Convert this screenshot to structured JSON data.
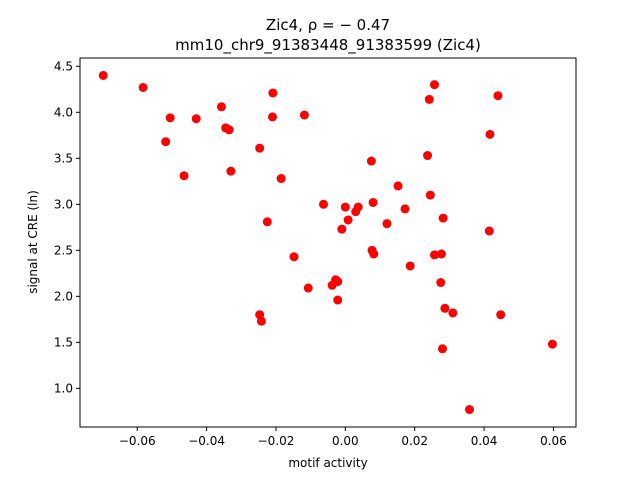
{
  "chart_data": {
    "type": "scatter",
    "title_line1": "Zic4, ρ = − 0.47",
    "title_line2": "mm10_chr9_91383448_91383599 (Zic4)",
    "xlabel": "motif activity",
    "ylabel": "signal at CRE (ln)",
    "xlim": [
      -0.0765,
      0.0665
    ],
    "ylim": [
      0.58,
      4.59
    ],
    "xticks": [
      -0.06,
      -0.04,
      -0.02,
      0.0,
      0.02,
      0.04,
      0.06
    ],
    "xtick_labels": [
      "−0.06",
      "−0.04",
      "−0.02",
      "0.00",
      "0.02",
      "0.04",
      "0.06"
    ],
    "yticks": [
      1.0,
      1.5,
      2.0,
      2.5,
      3.0,
      3.5,
      4.0,
      4.5
    ],
    "ytick_labels": [
      "1.0",
      "1.5",
      "2.0",
      "2.5",
      "3.0",
      "3.5",
      "4.0",
      "4.5"
    ],
    "grid": false,
    "marker_color": "#ff0000",
    "points": [
      {
        "x": -0.0698,
        "y": 4.4
      },
      {
        "x": -0.0583,
        "y": 4.27
      },
      {
        "x": -0.0505,
        "y": 3.94
      },
      {
        "x": -0.0518,
        "y": 3.68
      },
      {
        "x": -0.0465,
        "y": 3.31
      },
      {
        "x": -0.043,
        "y": 3.93
      },
      {
        "x": -0.0357,
        "y": 4.06
      },
      {
        "x": -0.0345,
        "y": 3.83
      },
      {
        "x": -0.0335,
        "y": 3.81
      },
      {
        "x": -0.033,
        "y": 3.36
      },
      {
        "x": -0.0247,
        "y": 3.61
      },
      {
        "x": -0.0209,
        "y": 4.21
      },
      {
        "x": -0.021,
        "y": 3.95
      },
      {
        "x": -0.0118,
        "y": 3.97
      },
      {
        "x": -0.0185,
        "y": 3.28
      },
      {
        "x": -0.0225,
        "y": 2.81
      },
      {
        "x": -0.0148,
        "y": 2.43
      },
      {
        "x": -0.0107,
        "y": 2.09
      },
      {
        "x": -0.0247,
        "y": 1.8
      },
      {
        "x": -0.0242,
        "y": 1.73
      },
      {
        "x": -0.0063,
        "y": 3.0
      },
      {
        "x": -0.0038,
        "y": 2.12
      },
      {
        "x": -0.0028,
        "y": 2.18
      },
      {
        "x": -0.0022,
        "y": 2.16
      },
      {
        "x": -0.0022,
        "y": 1.96
      },
      {
        "x": -0.001,
        "y": 2.73
      },
      {
        "x": 0.0,
        "y": 2.97
      },
      {
        "x": 0.0008,
        "y": 2.83
      },
      {
        "x": 0.003,
        "y": 2.92
      },
      {
        "x": 0.0037,
        "y": 2.97
      },
      {
        "x": 0.0075,
        "y": 3.47
      },
      {
        "x": 0.008,
        "y": 3.02
      },
      {
        "x": 0.0077,
        "y": 2.5
      },
      {
        "x": 0.0082,
        "y": 2.46
      },
      {
        "x": 0.012,
        "y": 2.79
      },
      {
        "x": 0.0152,
        "y": 3.2
      },
      {
        "x": 0.0172,
        "y": 2.95
      },
      {
        "x": 0.0187,
        "y": 2.33
      },
      {
        "x": 0.0237,
        "y": 3.53
      },
      {
        "x": 0.0242,
        "y": 4.14
      },
      {
        "x": 0.0257,
        "y": 4.3
      },
      {
        "x": 0.0245,
        "y": 3.1
      },
      {
        "x": 0.0257,
        "y": 2.45
      },
      {
        "x": 0.0277,
        "y": 2.46
      },
      {
        "x": 0.0275,
        "y": 2.15
      },
      {
        "x": 0.0282,
        "y": 2.85
      },
      {
        "x": 0.0287,
        "y": 1.87
      },
      {
        "x": 0.031,
        "y": 1.82
      },
      {
        "x": 0.028,
        "y": 1.43
      },
      {
        "x": 0.0358,
        "y": 0.77
      },
      {
        "x": 0.0417,
        "y": 3.76
      },
      {
        "x": 0.044,
        "y": 4.18
      },
      {
        "x": 0.0415,
        "y": 2.71
      },
      {
        "x": 0.0448,
        "y": 1.8
      },
      {
        "x": 0.0597,
        "y": 1.48
      }
    ]
  }
}
